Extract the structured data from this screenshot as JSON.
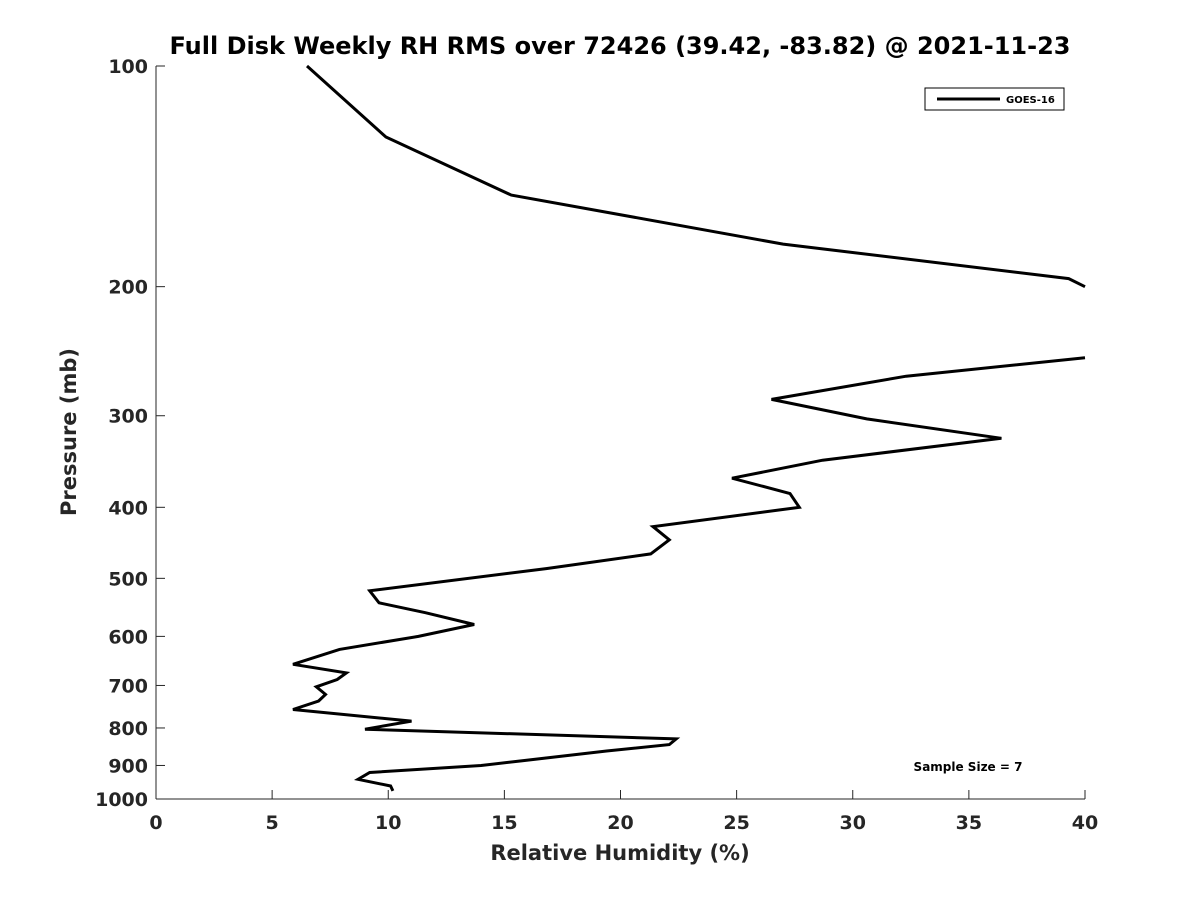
{
  "chart_data": {
    "type": "line",
    "title": "Full Disk Weekly RH RMS over 72426 (39.42, -83.82) @ 2021-11-23",
    "xlabel": "Relative Humidity (%)",
    "ylabel": "Pressure (mb)",
    "xlim": [
      0,
      40
    ],
    "ylim": [
      100,
      1000
    ],
    "y_scale": "log",
    "y_reversed": true,
    "xticks": [
      0,
      5,
      10,
      15,
      20,
      25,
      30,
      35,
      40
    ],
    "yticks": [
      100,
      200,
      300,
      400,
      500,
      600,
      700,
      800,
      900,
      1000
    ],
    "grid": false,
    "legend_position": "top-right",
    "annotation": "Sample Size = 7",
    "series": [
      {
        "name": "GOES-16",
        "color": "#000000",
        "segments": [
          [
            {
              "x": 6.5,
              "y": 100
            },
            {
              "x": 9.9,
              "y": 125
            },
            {
              "x": 15.3,
              "y": 150
            },
            {
              "x": 27.0,
              "y": 175
            },
            {
              "x": 39.3,
              "y": 195
            },
            {
              "x": 40.0,
              "y": 200
            }
          ],
          [
            {
              "x": 40.0,
              "y": 250
            },
            {
              "x": 32.3,
              "y": 265
            },
            {
              "x": 26.5,
              "y": 285
            },
            {
              "x": 30.6,
              "y": 303
            },
            {
              "x": 36.4,
              "y": 322
            },
            {
              "x": 28.7,
              "y": 345
            },
            {
              "x": 24.8,
              "y": 365
            },
            {
              "x": 27.3,
              "y": 383
            },
            {
              "x": 27.7,
              "y": 400
            },
            {
              "x": 21.4,
              "y": 425
            },
            {
              "x": 22.1,
              "y": 443
            },
            {
              "x": 21.3,
              "y": 463
            },
            {
              "x": 16.8,
              "y": 485
            },
            {
              "x": 9.2,
              "y": 520
            },
            {
              "x": 9.6,
              "y": 540
            },
            {
              "x": 11.6,
              "y": 557
            },
            {
              "x": 13.7,
              "y": 578
            },
            {
              "x": 11.3,
              "y": 600
            },
            {
              "x": 7.9,
              "y": 625
            },
            {
              "x": 5.9,
              "y": 655
            },
            {
              "x": 8.2,
              "y": 673
            },
            {
              "x": 7.8,
              "y": 687
            },
            {
              "x": 6.9,
              "y": 703
            },
            {
              "x": 7.3,
              "y": 720
            },
            {
              "x": 7.0,
              "y": 735
            },
            {
              "x": 5.9,
              "y": 755
            },
            {
              "x": 11.0,
              "y": 783
            },
            {
              "x": 9.0,
              "y": 803
            },
            {
              "x": 22.4,
              "y": 828
            },
            {
              "x": 22.1,
              "y": 843
            },
            {
              "x": 19.4,
              "y": 860
            },
            {
              "x": 16.7,
              "y": 880
            },
            {
              "x": 14.0,
              "y": 900
            },
            {
              "x": 9.2,
              "y": 920
            },
            {
              "x": 8.7,
              "y": 940
            },
            {
              "x": 10.1,
              "y": 960
            },
            {
              "x": 10.2,
              "y": 975
            }
          ]
        ]
      }
    ]
  }
}
